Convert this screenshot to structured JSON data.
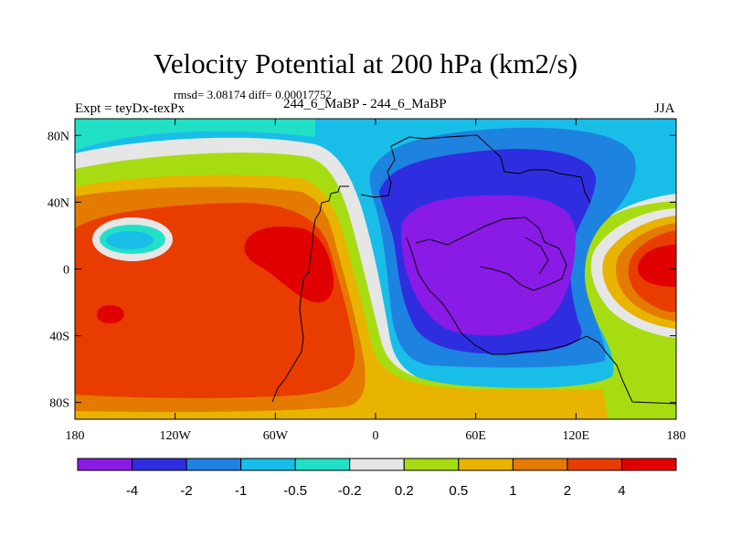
{
  "title": "Velocity Potential at 200 hPa (km2/s)",
  "stats": "rmsd= 3.08174 diff= 0.00017752",
  "left_label": "Expt = teyDx-texPx",
  "center_label": "244_6_MaBP - 244_6_MaBP",
  "right_label": "JJA",
  "axes": {
    "x_ticks": [
      {
        "lon": -180,
        "label": "180"
      },
      {
        "lon": -120,
        "label": "120W"
      },
      {
        "lon": -60,
        "label": "60W"
      },
      {
        "lon": 0,
        "label": "0"
      },
      {
        "lon": 60,
        "label": "60E"
      },
      {
        "lon": 120,
        "label": "120E"
      },
      {
        "lon": 180,
        "label": "180"
      }
    ],
    "y_ticks": [
      {
        "lat": 80,
        "label": "80N"
      },
      {
        "lat": 40,
        "label": "40N"
      },
      {
        "lat": 0,
        "label": "0"
      },
      {
        "lat": -40,
        "label": "40S"
      },
      {
        "lat": -80,
        "label": "80S"
      }
    ],
    "lon_range": [
      -180,
      180
    ],
    "lat_range": [
      -90,
      90
    ]
  },
  "colorbar": {
    "colors": [
      "#8a1ae6",
      "#2e2ee0",
      "#1e82e0",
      "#18bee8",
      "#22e0c6",
      "#e6e6e6",
      "#a8dc12",
      "#e8b400",
      "#e47a00",
      "#e83c00",
      "#e00000"
    ],
    "labels": [
      "-4",
      "-2",
      "-1",
      "-0.5",
      "-0.2",
      "0.2",
      "0.5",
      "1",
      "2",
      "4"
    ]
  }
}
